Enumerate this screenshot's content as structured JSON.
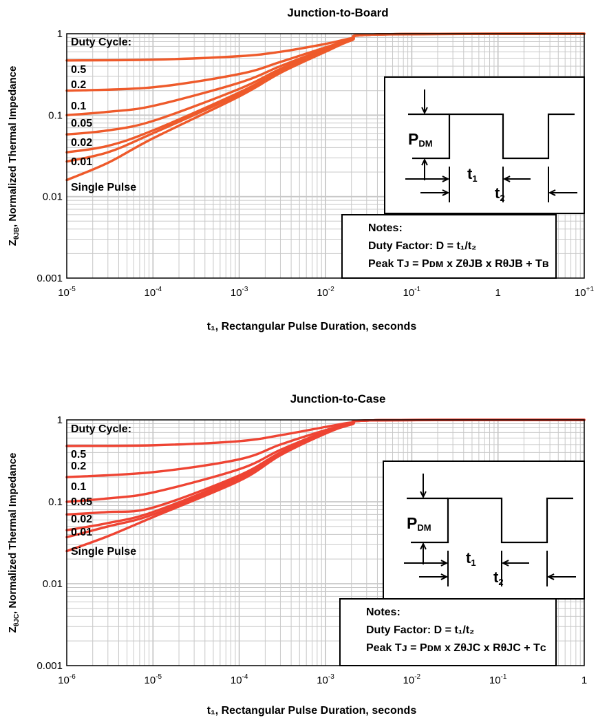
{
  "chart_data": [
    {
      "type": "line",
      "title": "Junction-to-Board",
      "xlabel_sub": "1",
      "xlabel": "t₁, Rectangular Pulse Duration, seconds",
      "ylabel_pre": "Z",
      "ylabel_sub": "θJB",
      "ylabel_post": ", Normalized Thermal Impedance",
      "x_scale": "log",
      "y_scale": "log",
      "xlim": [
        1e-05,
        10
      ],
      "ylim": [
        0.001,
        1
      ],
      "x_ticks": [
        {
          "value": 1e-05,
          "base": "10",
          "exp": "-5"
        },
        {
          "value": 0.0001,
          "base": "10",
          "exp": "-4"
        },
        {
          "value": 0.001,
          "base": "10",
          "exp": "-3"
        },
        {
          "value": 0.01,
          "base": "10",
          "exp": "-2"
        },
        {
          "value": 0.1,
          "base": "10",
          "exp": "-1"
        },
        {
          "value": 1,
          "base": "1",
          "exp": ""
        },
        {
          "value": 10,
          "base": "10",
          "exp": "+1"
        }
      ],
      "y_ticks": [
        {
          "value": 1,
          "label": "1"
        },
        {
          "value": 0.1,
          "label": "0.1"
        },
        {
          "value": 0.01,
          "label": "0.01"
        },
        {
          "value": 0.001,
          "label": "0.001"
        }
      ],
      "grid": true,
      "legend_title": "Duty Cycle:",
      "line_color": "#ee5a2b",
      "series": [
        {
          "name": "0.5",
          "x": [
            1e-05,
            0.0001,
            0.001,
            0.003,
            0.01,
            0.02,
            0.04,
            10
          ],
          "y": [
            0.47,
            0.48,
            0.53,
            0.6,
            0.75,
            0.88,
            0.98,
            1
          ]
        },
        {
          "name": "0.2",
          "x": [
            1e-05,
            0.0001,
            0.001,
            0.003,
            0.01,
            0.02,
            0.04,
            10
          ],
          "y": [
            0.2,
            0.22,
            0.32,
            0.45,
            0.68,
            0.85,
            0.98,
            1
          ]
        },
        {
          "name": "0.1",
          "x": [
            1e-05,
            3e-05,
            0.0001,
            0.001,
            0.003,
            0.01,
            0.02,
            0.04,
            10
          ],
          "y": [
            0.1,
            0.11,
            0.13,
            0.25,
            0.4,
            0.65,
            0.85,
            0.98,
            1
          ]
        },
        {
          "name": "0.05",
          "x": [
            1e-05,
            3e-05,
            0.0001,
            0.001,
            0.003,
            0.01,
            0.02,
            0.04,
            10
          ],
          "y": [
            0.058,
            0.065,
            0.085,
            0.21,
            0.37,
            0.63,
            0.84,
            0.98,
            1
          ]
        },
        {
          "name": "0.02",
          "x": [
            1e-05,
            3e-05,
            0.0001,
            0.001,
            0.003,
            0.01,
            0.02,
            0.04,
            10
          ],
          "y": [
            0.035,
            0.042,
            0.065,
            0.19,
            0.35,
            0.62,
            0.84,
            0.98,
            1
          ]
        },
        {
          "name": "0.01",
          "x": [
            1e-05,
            3e-05,
            0.0001,
            0.001,
            0.003,
            0.01,
            0.02,
            0.04,
            10
          ],
          "y": [
            0.027,
            0.035,
            0.06,
            0.18,
            0.34,
            0.61,
            0.83,
            0.98,
            1
          ]
        },
        {
          "name": "Single Pulse",
          "x": [
            1e-05,
            3e-05,
            0.0001,
            0.001,
            0.003,
            0.01,
            0.02,
            0.04,
            10
          ],
          "y": [
            0.016,
            0.026,
            0.052,
            0.17,
            0.33,
            0.6,
            0.83,
            0.98,
            1
          ]
        }
      ],
      "inset": {
        "pdm_main": "P",
        "pdm_sub": "DM",
        "t1_main": "t",
        "t1_sub": "1",
        "t2_main": "t",
        "t2_sub": "2"
      },
      "notes": {
        "heading": "Notes:",
        "duty_factor": "Duty Factor: D = t₁/t₂",
        "peak": "Peak Tᴊ = Pᴅᴍ x ZθJB x RθJB + Tʙ"
      }
    },
    {
      "type": "line",
      "title": "Junction-to-Case",
      "xlabel_sub": "1",
      "xlabel": "t₁, Rectangular Pulse Duration, seconds",
      "ylabel_pre": "Z",
      "ylabel_sub": "θJC",
      "ylabel_post": ", Normalized Thermal Impedance",
      "x_scale": "log",
      "y_scale": "log",
      "xlim": [
        1e-06,
        1
      ],
      "ylim": [
        0.001,
        1
      ],
      "x_ticks": [
        {
          "value": 1e-06,
          "base": "10",
          "exp": "-6"
        },
        {
          "value": 1e-05,
          "base": "10",
          "exp": "-5"
        },
        {
          "value": 0.0001,
          "base": "10",
          "exp": "-4"
        },
        {
          "value": 0.001,
          "base": "10",
          "exp": "-3"
        },
        {
          "value": 0.01,
          "base": "10",
          "exp": "-2"
        },
        {
          "value": 0.1,
          "base": "10",
          "exp": "-1"
        },
        {
          "value": 1,
          "base": "1",
          "exp": ""
        }
      ],
      "y_ticks": [
        {
          "value": 1,
          "label": "1"
        },
        {
          "value": 0.1,
          "label": "0.1"
        },
        {
          "value": 0.01,
          "label": "0.01"
        },
        {
          "value": 0.001,
          "label": "0.001"
        }
      ],
      "grid": true,
      "legend_title": "Duty Cycle:",
      "line_color": "#ee4433",
      "series": [
        {
          "name": "0.5",
          "x": [
            1e-06,
            1e-05,
            0.0001,
            0.0003,
            0.001,
            0.002,
            0.004,
            1
          ],
          "y": [
            0.48,
            0.49,
            0.55,
            0.65,
            0.82,
            0.93,
            0.99,
            1
          ]
        },
        {
          "name": "0.2",
          "x": [
            1e-06,
            1e-05,
            0.0001,
            0.0003,
            0.001,
            0.002,
            0.004,
            1
          ],
          "y": [
            0.2,
            0.23,
            0.33,
            0.5,
            0.75,
            0.9,
            0.99,
            1
          ]
        },
        {
          "name": "0.1",
          "x": [
            1e-06,
            3e-06,
            1e-05,
            0.0001,
            0.0003,
            0.001,
            0.002,
            0.004,
            1
          ],
          "y": [
            0.1,
            0.11,
            0.13,
            0.25,
            0.43,
            0.72,
            0.89,
            0.99,
            1
          ]
        },
        {
          "name": "0.05",
          "x": [
            1e-06,
            3e-06,
            1e-05,
            0.0001,
            0.0003,
            0.001,
            0.002,
            0.004,
            1
          ],
          "y": [
            0.07,
            0.075,
            0.085,
            0.21,
            0.4,
            0.7,
            0.89,
            0.99,
            1
          ]
        },
        {
          "name": "0.02",
          "x": [
            1e-06,
            3e-06,
            1e-05,
            0.0001,
            0.0003,
            0.001,
            0.002,
            0.004,
            1
          ],
          "y": [
            0.045,
            0.055,
            0.075,
            0.2,
            0.39,
            0.7,
            0.88,
            0.99,
            1
          ]
        },
        {
          "name": "0.01",
          "x": [
            1e-06,
            3e-06,
            1e-05,
            0.0001,
            0.0003,
            0.001,
            0.002,
            0.004,
            1
          ],
          "y": [
            0.037,
            0.05,
            0.07,
            0.19,
            0.38,
            0.69,
            0.88,
            0.99,
            1
          ]
        },
        {
          "name": "Single Pulse",
          "x": [
            1e-06,
            3e-06,
            1e-05,
            0.0001,
            0.0003,
            0.001,
            0.002,
            0.004,
            1
          ],
          "y": [
            0.025,
            0.038,
            0.065,
            0.18,
            0.37,
            0.68,
            0.88,
            0.99,
            1
          ]
        }
      ],
      "inset": {
        "pdm_main": "P",
        "pdm_sub": "DM",
        "t1_main": "t",
        "t1_sub": "1",
        "t2_main": "t",
        "t2_sub": "2"
      },
      "notes": {
        "heading": "Notes:",
        "duty_factor": "Duty Factor: D = t₁/t₂",
        "peak": "Peak Tᴊ = Pᴅᴍ x ZθJC x RθJC + Tᴄ"
      }
    }
  ]
}
